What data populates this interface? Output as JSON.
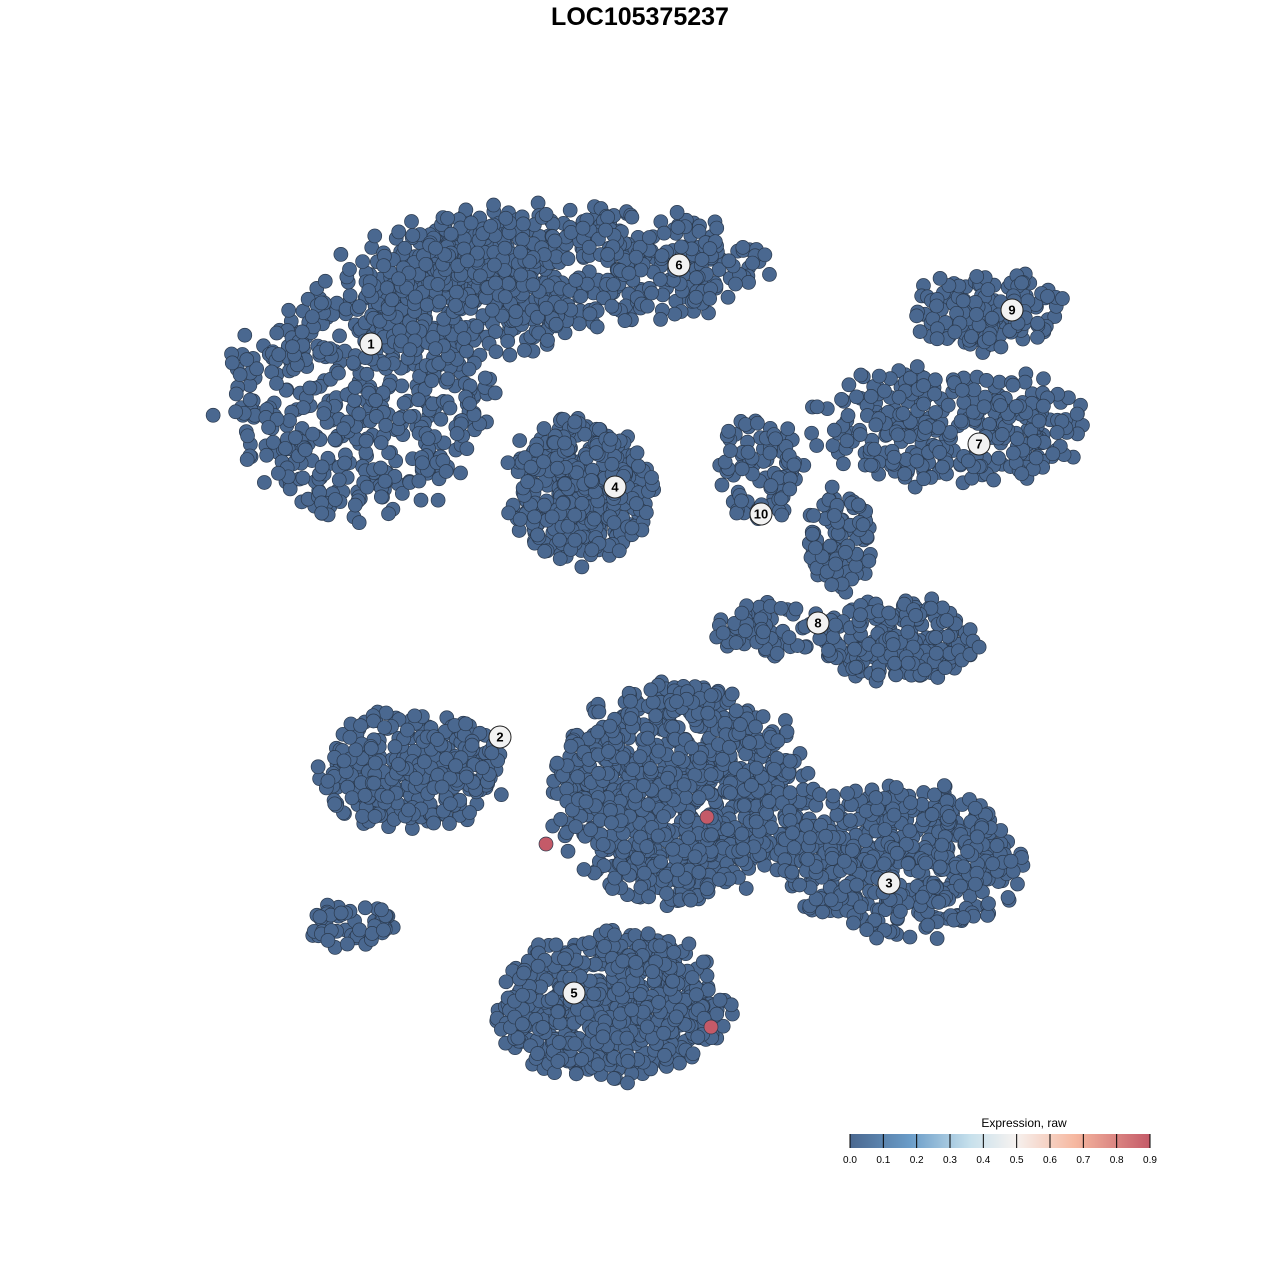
{
  "chart_data": {
    "type": "scatter",
    "title": "LOC105375237",
    "xlabel": "",
    "ylabel": "",
    "grid": false,
    "axes_visible": false,
    "point_color_default": "#4a6890",
    "point_color_high": "#c45a68",
    "cluster_labels": [
      "1",
      "2",
      "3",
      "4",
      "5",
      "6",
      "7",
      "8",
      "9",
      "10"
    ],
    "expressed_points": [
      {
        "cluster": "center",
        "value": 0.9
      },
      {
        "cluster": "2",
        "value": 0.9
      },
      {
        "cluster": "5",
        "value": 0.9
      }
    ],
    "colorbar": {
      "title": "Expression, raw",
      "range": [
        0.0,
        0.9
      ],
      "ticks": [
        "0.0",
        "0.1",
        "0.2",
        "0.3",
        "0.4",
        "0.5",
        "0.6",
        "0.7",
        "0.8",
        "0.9"
      ],
      "colors": [
        "#4a6890",
        "#6a9cc8",
        "#a8d0e2",
        "#f4f4f4",
        "#f8c8b0",
        "#c45a68"
      ],
      "placement": "bottom-right"
    }
  }
}
